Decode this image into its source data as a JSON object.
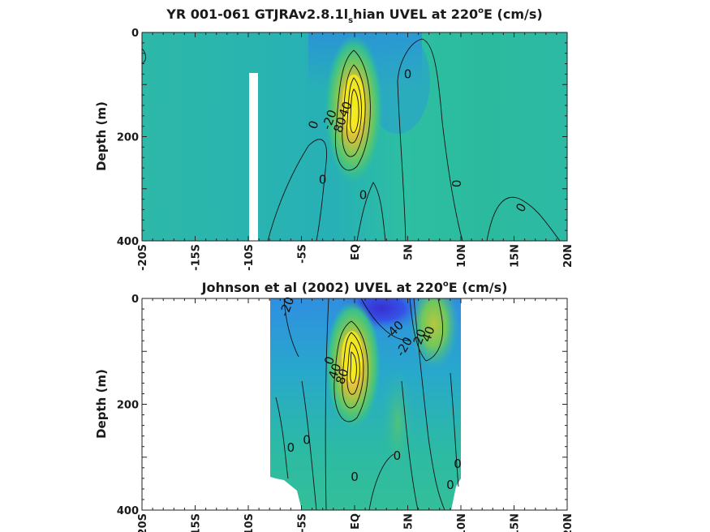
{
  "chart_data": [
    {
      "type": "heatmap",
      "title_main": "YR 001-061 GTJRAv2.8.1l",
      "title_sub": "s",
      "title_rest": "hian UVEL at 220",
      "title_deg": "o",
      "title_end": "E (cm/s)",
      "ylabel": "Depth (m)",
      "xlim": [
        -20,
        20
      ],
      "ylim": [
        0,
        400
      ],
      "x_ticks": [
        "-20S",
        "-15S",
        "-10S",
        "-5S",
        "EQ",
        "5N",
        "10N",
        "15N",
        "20N"
      ],
      "y_ticks": [
        "0",
        "200",
        "400"
      ],
      "colormap": [
        "#3a2fb0",
        "#2f6fe0",
        "#24a6d6",
        "#2fc0a8",
        "#6fcf60",
        "#cfc43a",
        "#f3ec1e"
      ],
      "core": {
        "lat": 0,
        "depth": 140,
        "max_speed": 100
      },
      "contour_labels": [
        "0",
        "0",
        "0",
        "0",
        "0",
        "0",
        "-20",
        "40",
        "80"
      ]
    },
    {
      "type": "heatmap",
      "title_main": "Johnson et al (2002) UVEL at 220",
      "title_deg": "o",
      "title_end": "E (cm/s)",
      "ylabel": "Depth (m)",
      "xlim": [
        -20,
        20
      ],
      "ylim": [
        0,
        400
      ],
      "x_ticks": [
        "-20S",
        "-15S",
        "-10S",
        "-5S",
        "EQ",
        "5N",
        "10N",
        "15N",
        "20N"
      ],
      "y_ticks": [
        "0",
        "200",
        "400"
      ],
      "data_extent_lat": [
        -8,
        10
      ],
      "colormap": [
        "#3a2fb0",
        "#2f6fe0",
        "#24a6d6",
        "#2fc0a8",
        "#6fcf60",
        "#cfc43a",
        "#f3ec1e"
      ],
      "core": {
        "lat": 0,
        "depth": 110,
        "max_speed": 100
      },
      "contour_labels": [
        "-20",
        "-40",
        "-20",
        "40",
        "20",
        "0",
        "0",
        "0",
        "0",
        "0",
        "0",
        "0",
        "40",
        "80"
      ]
    }
  ]
}
